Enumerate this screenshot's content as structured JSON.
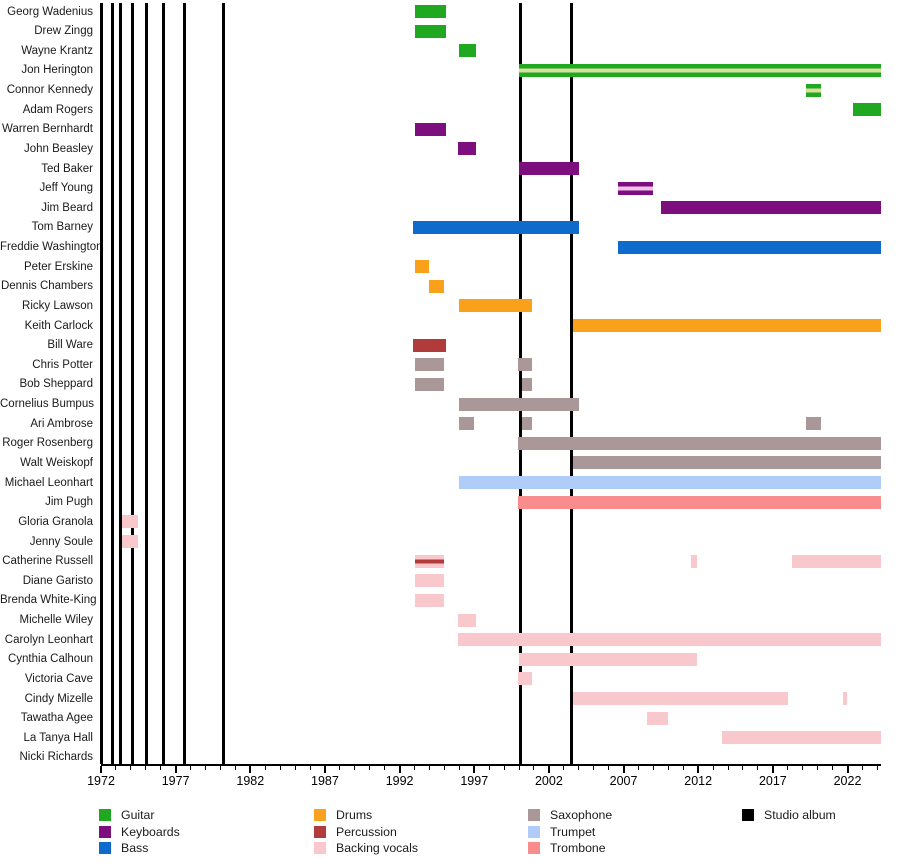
{
  "chart_data": {
    "type": "timeline",
    "description": "Band membership timeline, 1972-2024, instruments color-coded, studio albums as vertical black lines",
    "x_axis": {
      "start_year": 1972,
      "end_year": 2024.25,
      "major_ticks": [
        1972,
        1977,
        1982,
        1987,
        1992,
        1997,
        2002,
        2007,
        2012,
        2017,
        2022
      ],
      "minor_tick_every_years": 1
    },
    "roles": {
      "guitar": {
        "label": "Guitar",
        "color": "#21A821"
      },
      "keyboards": {
        "label": "Keyboards",
        "color": "#7D0E7D"
      },
      "bass": {
        "label": "Bass",
        "color": "#0E6BCB"
      },
      "drums": {
        "label": "Drums",
        "color": "#F9A11B"
      },
      "percussion": {
        "label": "Percussion",
        "color": "#B13B3B"
      },
      "backing_vocals": {
        "label": "Backing vocals",
        "color": "#F9C8CC"
      },
      "saxophone": {
        "label": "Saxophone",
        "color": "#AA9797"
      },
      "trumpet": {
        "label": "Trumpet",
        "color": "#AFCDF8"
      },
      "trombone": {
        "label": "Trombone",
        "color": "#F98C8C"
      },
      "studio_album": {
        "label": "Studio album",
        "color": "#000000"
      }
    },
    "albums": {
      "years": [
        1972.0,
        1972.8,
        1973.3,
        1974.1,
        1975.05,
        1976.2,
        1977.6,
        1980.2,
        2000.1,
        2003.5
      ]
    },
    "members": [
      {
        "name": "Georg Wadenius",
        "bars": [
          {
            "role": "guitar",
            "from": 1993.0,
            "to": 1995.1
          }
        ]
      },
      {
        "name": "Drew Zingg",
        "bars": [
          {
            "role": "guitar",
            "from": 1993.0,
            "to": 1995.1
          }
        ]
      },
      {
        "name": "Wayne Krantz",
        "bars": [
          {
            "role": "guitar",
            "from": 1996.0,
            "to": 1997.1
          }
        ]
      },
      {
        "name": "Jon Herington",
        "bars": [
          {
            "role": "guitar",
            "from": 2000.0,
            "to": 2024.25,
            "stripe": "#D9DF9F"
          }
        ]
      },
      {
        "name": "Connor Kennedy",
        "bars": [
          {
            "role": "guitar",
            "from": 2019.2,
            "to": 2020.2,
            "stripe": "#D9DF9F"
          }
        ]
      },
      {
        "name": "Adam Rogers",
        "bars": [
          {
            "role": "guitar",
            "from": 2022.4,
            "to": 2024.25
          }
        ]
      },
      {
        "name": "Warren Bernhardt",
        "bars": [
          {
            "role": "keyboards",
            "from": 1993.0,
            "to": 1995.1
          }
        ]
      },
      {
        "name": "John Beasley",
        "bars": [
          {
            "role": "keyboards",
            "from": 1995.9,
            "to": 1997.1
          }
        ]
      },
      {
        "name": "Ted Baker",
        "bars": [
          {
            "role": "keyboards",
            "from": 2000.0,
            "to": 2004.0
          }
        ]
      },
      {
        "name": "Jeff Young",
        "bars": [
          {
            "role": "keyboards",
            "from": 2006.6,
            "to": 2009.0,
            "stripe": "#EFC2EA"
          }
        ]
      },
      {
        "name": "Jim Beard",
        "bars": [
          {
            "role": "keyboards",
            "from": 2009.5,
            "to": 2024.25
          }
        ]
      },
      {
        "name": "Tom Barney",
        "bars": [
          {
            "role": "bass",
            "from": 1992.9,
            "to": 2004.0
          }
        ]
      },
      {
        "name": "Freddie Washington",
        "bars": [
          {
            "role": "bass",
            "from": 2006.6,
            "to": 2024.25
          }
        ]
      },
      {
        "name": "Peter Erskine",
        "bars": [
          {
            "role": "drums",
            "from": 1993.0,
            "to": 1994.0
          }
        ]
      },
      {
        "name": "Dennis Chambers",
        "bars": [
          {
            "role": "drums",
            "from": 1994.0,
            "to": 1995.0
          }
        ]
      },
      {
        "name": "Ricky Lawson",
        "bars": [
          {
            "role": "drums",
            "from": 1996.0,
            "to": 2000.9
          }
        ]
      },
      {
        "name": "Keith Carlock",
        "bars": [
          {
            "role": "drums",
            "from": 2003.6,
            "to": 2024.25
          }
        ]
      },
      {
        "name": "Bill Ware",
        "bars": [
          {
            "role": "percussion",
            "from": 1992.9,
            "to": 1995.1
          }
        ]
      },
      {
        "name": "Chris Potter",
        "bars": [
          {
            "role": "saxophone",
            "from": 1993.0,
            "to": 1995.0
          },
          {
            "role": "saxophone",
            "from": 1999.9,
            "to": 2000.9
          }
        ]
      },
      {
        "name": "Bob Sheppard",
        "bars": [
          {
            "role": "saxophone",
            "from": 1993.0,
            "to": 1995.0
          },
          {
            "role": "saxophone",
            "from": 2000.2,
            "to": 2000.9
          }
        ]
      },
      {
        "name": "Cornelius Bumpus",
        "bars": [
          {
            "role": "saxophone",
            "from": 1996.0,
            "to": 2004.0
          }
        ]
      },
      {
        "name": "Ari Ambrose",
        "bars": [
          {
            "role": "saxophone",
            "from": 1996.0,
            "to": 1997.0
          },
          {
            "role": "saxophone",
            "from": 2000.2,
            "to": 2000.9
          },
          {
            "role": "saxophone",
            "from": 2019.2,
            "to": 2020.2
          }
        ]
      },
      {
        "name": "Roger Rosenberg",
        "bars": [
          {
            "role": "saxophone",
            "from": 1999.9,
            "to": 2024.25
          }
        ]
      },
      {
        "name": "Walt Weiskopf",
        "bars": [
          {
            "role": "saxophone",
            "from": 2003.6,
            "to": 2024.25
          }
        ]
      },
      {
        "name": "Michael Leonhart",
        "bars": [
          {
            "role": "trumpet",
            "from": 1996.0,
            "to": 2024.25
          }
        ]
      },
      {
        "name": "Jim Pugh",
        "bars": [
          {
            "role": "trombone",
            "from": 1999.9,
            "to": 2024.25
          }
        ]
      },
      {
        "name": "Gloria Granola",
        "bars": [
          {
            "role": "backing_vocals",
            "from": 1973.4,
            "to": 1974.5
          }
        ]
      },
      {
        "name": "Jenny Soule",
        "bars": [
          {
            "role": "backing_vocals",
            "from": 1973.4,
            "to": 1974.5
          }
        ]
      },
      {
        "name": "Catherine Russell",
        "bars": [
          {
            "role": "backing_vocals",
            "from": 1993.0,
            "to": 1995.0,
            "stripe": "#B13B3B"
          },
          {
            "role": "backing_vocals",
            "from": 2011.5,
            "to": 2011.9
          },
          {
            "role": "backing_vocals",
            "from": 2018.3,
            "to": 2024.25
          }
        ]
      },
      {
        "name": "Diane Garisto",
        "bars": [
          {
            "role": "backing_vocals",
            "from": 1993.0,
            "to": 1995.0
          }
        ]
      },
      {
        "name": "Brenda White-King",
        "bars": [
          {
            "role": "backing_vocals",
            "from": 1993.0,
            "to": 1995.0
          }
        ]
      },
      {
        "name": "Michelle Wiley",
        "bars": [
          {
            "role": "backing_vocals",
            "from": 1995.9,
            "to": 1997.1
          }
        ]
      },
      {
        "name": "Carolyn Leonhart",
        "bars": [
          {
            "role": "backing_vocals",
            "from": 1995.9,
            "to": 2024.25
          }
        ]
      },
      {
        "name": "Cynthia Calhoun",
        "bars": [
          {
            "role": "backing_vocals",
            "from": 2000.0,
            "to": 2011.9
          }
        ]
      },
      {
        "name": "Victoria Cave",
        "bars": [
          {
            "role": "backing_vocals",
            "from": 1999.9,
            "to": 2000.9
          }
        ]
      },
      {
        "name": "Cindy Mizelle",
        "bars": [
          {
            "role": "backing_vocals",
            "from": 2003.6,
            "to": 2018.0
          },
          {
            "role": "backing_vocals",
            "from": 2021.7,
            "to": 2022.0
          }
        ]
      },
      {
        "name": "Tawatha Agee",
        "bars": [
          {
            "role": "backing_vocals",
            "from": 2008.6,
            "to": 2010.0
          }
        ]
      },
      {
        "name": "La Tanya Hall",
        "bars": [
          {
            "role": "backing_vocals",
            "from": 2013.6,
            "to": 2024.25
          }
        ]
      },
      {
        "name": "Nicki Richards",
        "bars": []
      }
    ],
    "legend_columns": [
      [
        "guitar",
        "keyboards",
        "bass"
      ],
      [
        "drums",
        "percussion",
        "backing_vocals"
      ],
      [
        "saxophone",
        "trumpet",
        "trombone"
      ],
      [
        "studio_album"
      ]
    ]
  }
}
